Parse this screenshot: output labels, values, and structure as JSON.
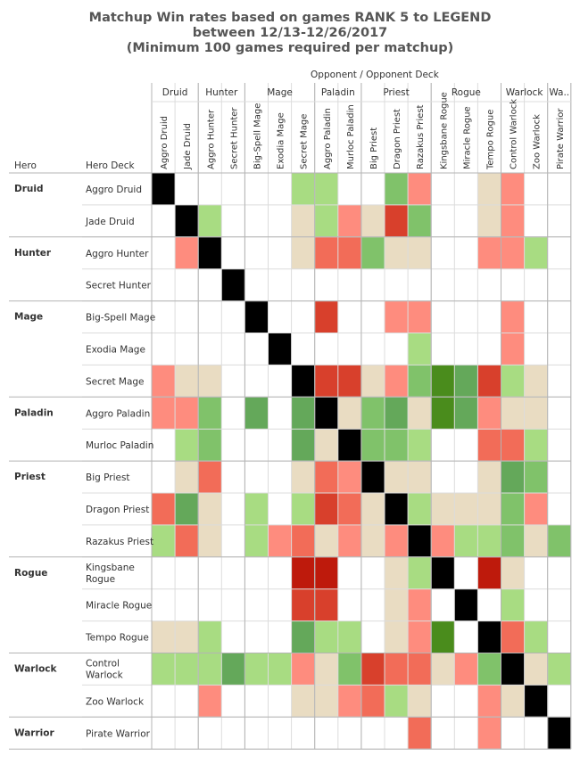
{
  "title_lines": [
    "Matchup Win rates based on games RANK 5 to LEGEND",
    "between 12/13-12/26/2017",
    "(Minimum 100 games required per matchup)"
  ],
  "chart_data": {
    "type": "heatmap",
    "column_header": "Opponent  /  Opponent Deck",
    "row_headers": [
      "Hero",
      "Hero Deck"
    ],
    "col_heroes": [
      {
        "label": "Druid",
        "span": 2
      },
      {
        "label": "Hunter",
        "span": 2
      },
      {
        "label": "Mage",
        "span": 3
      },
      {
        "label": "Paladin",
        "span": 2
      },
      {
        "label": "Priest",
        "span": 3
      },
      {
        "label": "Rogue",
        "span": 3
      },
      {
        "label": "Warlock",
        "span": 2
      },
      {
        "label": "Wa..",
        "span": 1
      }
    ],
    "columns": [
      "Aggro Druid",
      "Jade Druid",
      "Aggro Hunter",
      "Secret Hunter",
      "Big-Spell Mage",
      "Exodia Mage",
      "Secret Mage",
      "Aggro Paladin",
      "Murloc Paladin",
      "Big Priest",
      "Dragon Priest",
      "Razakus Priest",
      "Kingsbane Rogue",
      "Miracle Rogue",
      "Tempo Rogue",
      "Control Warlock",
      "Zoo Warlock",
      "Pirate Warrior"
    ],
    "row_heroes": [
      {
        "label": "Druid",
        "span": 2
      },
      {
        "label": "Hunter",
        "span": 2
      },
      {
        "label": "Mage",
        "span": 3
      },
      {
        "label": "Paladin",
        "span": 2
      },
      {
        "label": "Priest",
        "span": 3
      },
      {
        "label": "Rogue",
        "span": 3
      },
      {
        "label": "Warlock",
        "span": 2
      },
      {
        "label": "Warrior",
        "span": 1
      }
    ],
    "rows": [
      "Aggro Druid",
      "Jade Druid",
      "Aggro Hunter",
      "Secret Hunter",
      "Big-Spell Mage",
      "Exodia Mage",
      "Secret Mage",
      "Aggro Paladin",
      "Murloc Paladin",
      "Big Priest",
      "Dragon Priest",
      "Razakus Priest",
      "Kingsbane Rogue",
      "Miracle Rogue",
      "Tempo Rogue",
      "Control Warlock",
      "Zoo Warlock",
      "Pirate Warrior"
    ],
    "row_labels": [
      [
        "Aggro Druid"
      ],
      [
        "Jade Druid"
      ],
      [
        "Aggro Hunter"
      ],
      [
        "Secret Hunter"
      ],
      [
        "Big-Spell Mage"
      ],
      [
        "Exodia Mage"
      ],
      [
        "Secret Mage"
      ],
      [
        "Aggro Paladin"
      ],
      [
        "Murloc Paladin"
      ],
      [
        "Big Priest"
      ],
      [
        "Dragon Priest"
      ],
      [
        "Razakus Priest"
      ],
      [
        "Kingsbane",
        "Rogue"
      ],
      [
        "Miracle Rogue"
      ],
      [
        "Tempo Rogue"
      ],
      [
        "Control",
        "Warlock"
      ],
      [
        "Zoo Warlock"
      ],
      [
        "Pirate Warrior"
      ]
    ],
    "color_categories": {
      "self": "#000000",
      "strong_win": "#4a8c1c",
      "win": "#64a85a",
      "slight_win": "#80c26a",
      "marginal_win": "#a8dc82",
      "even": "#e9dcc2",
      "marginal_loss": "#fe8c7e",
      "slight_loss": "#f26c58",
      "loss": "#d8402c",
      "strong_loss": "#be1a0c",
      "none": "#ffffff"
    },
    "cells": [
      [
        "K",
        "",
        "",
        "",
        "",
        "",
        "A",
        "A",
        "",
        "",
        "S",
        "M",
        "",
        "",
        "E",
        "M",
        "",
        ""
      ],
      [
        "",
        "K",
        "A",
        "",
        "",
        "",
        "E",
        "A",
        "M",
        "E",
        "L",
        "S",
        "",
        "",
        "E",
        "M",
        "",
        ""
      ],
      [
        "",
        "M",
        "K",
        "",
        "",
        "",
        "E",
        "N",
        "N",
        "S",
        "E",
        "E",
        "",
        "",
        "M",
        "M",
        "A",
        ""
      ],
      [
        "",
        "",
        "",
        "K",
        "",
        "",
        "",
        "",
        "",
        "",
        "",
        "",
        "",
        "",
        "",
        "",
        "",
        ""
      ],
      [
        "",
        "",
        "",
        "",
        "K",
        "",
        "",
        "L",
        "",
        "",
        "M",
        "M",
        "",
        "",
        "",
        "M",
        "",
        ""
      ],
      [
        "",
        "",
        "",
        "",
        "",
        "K",
        "",
        "",
        "",
        "",
        "",
        "A",
        "",
        "",
        "",
        "M",
        "",
        ""
      ],
      [
        "M",
        "E",
        "E",
        "",
        "",
        "",
        "K",
        "L",
        "L",
        "E",
        "M",
        "S",
        "G",
        "W",
        "L",
        "A",
        "E",
        ""
      ],
      [
        "M",
        "M",
        "S",
        "",
        "W",
        "",
        "W",
        "K",
        "E",
        "S",
        "W",
        "E",
        "G",
        "W",
        "M",
        "E",
        "E",
        ""
      ],
      [
        "",
        "A",
        "S",
        "",
        "",
        "",
        "W",
        "E",
        "K",
        "S",
        "S",
        "A",
        "",
        "",
        "N",
        "N",
        "A",
        ""
      ],
      [
        "",
        "E",
        "N",
        "",
        "",
        "",
        "E",
        "N",
        "M",
        "K",
        "E",
        "E",
        "",
        "",
        "E",
        "W",
        "S",
        ""
      ],
      [
        "N",
        "W",
        "E",
        "",
        "A",
        "",
        "A",
        "L",
        "N",
        "E",
        "K",
        "A",
        "E",
        "E",
        "E",
        "S",
        "M",
        ""
      ],
      [
        "A",
        "N",
        "E",
        "",
        "A",
        "M",
        "N",
        "E",
        "M",
        "E",
        "M",
        "K",
        "M",
        "A",
        "A",
        "S",
        "E",
        "S"
      ],
      [
        "",
        "",
        "",
        "",
        "",
        "",
        "R",
        "R",
        "",
        "",
        "E",
        "A",
        "K",
        "",
        "R",
        "E",
        "",
        ""
      ],
      [
        "",
        "",
        "",
        "",
        "",
        "",
        "L",
        "L",
        "",
        "",
        "E",
        "M",
        "",
        "K",
        "",
        "A",
        "",
        ""
      ],
      [
        "E",
        "E",
        "A",
        "",
        "",
        "",
        "W",
        "A",
        "A",
        "",
        "E",
        "M",
        "G",
        "",
        "K",
        "N",
        "A",
        ""
      ],
      [
        "A",
        "A",
        "A",
        "W",
        "A",
        "A",
        "M",
        "E",
        "S",
        "L",
        "N",
        "N",
        "E",
        "M",
        "S",
        "K",
        "E",
        "A"
      ],
      [
        "",
        "",
        "M",
        "",
        "",
        "",
        "E",
        "E",
        "M",
        "N",
        "A",
        "E",
        "",
        "",
        "M",
        "E",
        "K",
        ""
      ],
      [
        "",
        "",
        "",
        "",
        "",
        "",
        "",
        "",
        "",
        "",
        "",
        "N",
        "",
        "",
        "M",
        "",
        "",
        "K"
      ]
    ],
    "cell_key": {
      "K": "self",
      "G": "strong_win",
      "W": "win",
      "S": "slight_win",
      "A": "marginal_win",
      "E": "even",
      "M": "marginal_loss",
      "N": "slight_loss",
      "L": "loss",
      "R": "strong_loss",
      "": "none"
    }
  }
}
